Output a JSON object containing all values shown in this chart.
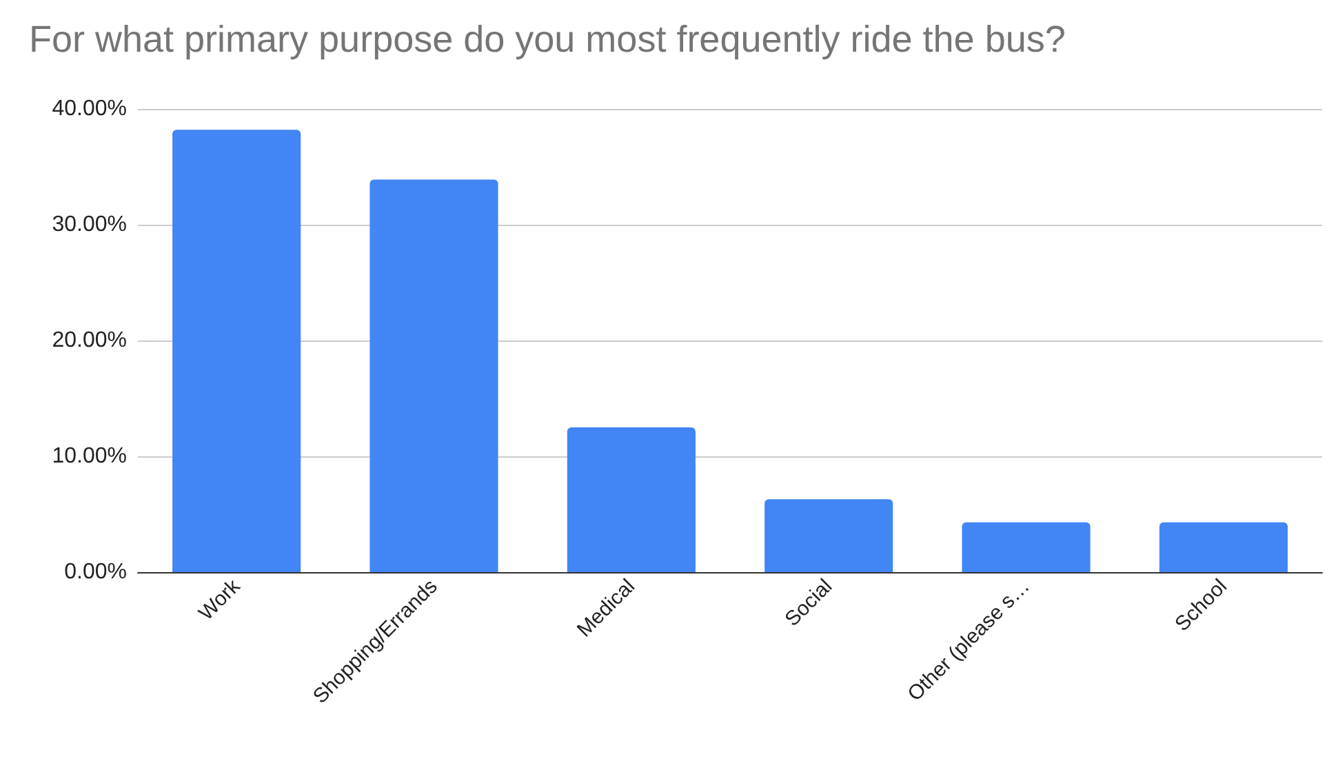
{
  "chart_data": {
    "type": "bar",
    "title": "For what primary purpose do you most frequently ride the bus?",
    "categories": [
      "Work",
      "Shopping/Errands",
      "Medical",
      "Social",
      "Other (please s…",
      "School"
    ],
    "values": [
      38.2,
      33.9,
      12.5,
      6.3,
      4.3,
      4.3
    ],
    "color": "#4285f4",
    "ylim": [
      0,
      40
    ],
    "yticks": [
      {
        "value": 0,
        "label": "0.00%"
      },
      {
        "value": 10,
        "label": "10.00%"
      },
      {
        "value": 20,
        "label": "20.00%"
      },
      {
        "value": 30,
        "label": "30.00%"
      },
      {
        "value": 40,
        "label": "40.00%"
      }
    ],
    "grid": "y"
  }
}
